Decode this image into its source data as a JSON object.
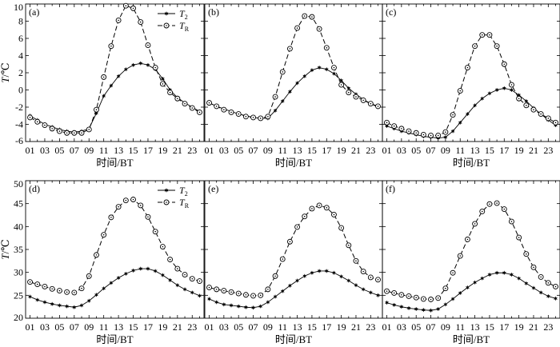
{
  "figure": {
    "ylabel_var": "T",
    "ylabel_unit": "/℃",
    "xlabel": "时间/BT",
    "x_tick_labels": [
      "01",
      "03",
      "05",
      "07",
      "09",
      "11",
      "13",
      "15",
      "17",
      "19",
      "21",
      "23"
    ]
  },
  "legend": {
    "t2": {
      "label": "T",
      "sub": "2",
      "color": "#000000",
      "style": "solid",
      "marker": "filled-star"
    },
    "tr": {
      "label": "T",
      "sub": "R",
      "color": "#000000",
      "style": "dashed",
      "marker": "open-circle"
    }
  },
  "chart_data": [
    {
      "type": "line",
      "panel_label": "(a)",
      "row": 0,
      "x": [
        1,
        2,
        3,
        4,
        5,
        6,
        7,
        8,
        9,
        10,
        11,
        12,
        13,
        14,
        15,
        16,
        17,
        18,
        19,
        20,
        21,
        22,
        23,
        24
      ],
      "ylim": [
        -6,
        10
      ],
      "yticks": [
        -6,
        -4,
        -2,
        0,
        2,
        4,
        6,
        8,
        10
      ],
      "series": [
        {
          "name": "T2",
          "values": [
            -3.0,
            -3.5,
            -4.0,
            -4.3,
            -4.6,
            -4.8,
            -4.9,
            -4.8,
            -4.5,
            -2.7,
            -0.7,
            0.5,
            1.6,
            2.4,
            2.9,
            3.1,
            2.9,
            2.4,
            1.3,
            0.0,
            -0.9,
            -1.5,
            -2.0,
            -2.5
          ]
        },
        {
          "name": "TR",
          "values": [
            -3.2,
            -3.7,
            -4.1,
            -4.5,
            -4.8,
            -5.0,
            -5.0,
            -5.0,
            -4.6,
            -2.3,
            1.5,
            5.1,
            8.1,
            9.8,
            9.5,
            7.9,
            5.2,
            2.6,
            0.7,
            -0.3,
            -1.0,
            -1.6,
            -2.1,
            -2.6
          ]
        }
      ]
    },
    {
      "type": "line",
      "panel_label": "(b)",
      "row": 0,
      "x": [
        1,
        2,
        3,
        4,
        5,
        6,
        7,
        8,
        9,
        10,
        11,
        12,
        13,
        14,
        15,
        16,
        17,
        18,
        19,
        20,
        21,
        22,
        23,
        24
      ],
      "ylim": [
        -6,
        10
      ],
      "yticks": [
        -6,
        -4,
        -2,
        0,
        2,
        4,
        6,
        8,
        10
      ],
      "series": [
        {
          "name": "T2",
          "values": [
            -1.5,
            -1.9,
            -2.2,
            -2.5,
            -2.8,
            -3.0,
            -3.2,
            -3.3,
            -3.3,
            -2.4,
            -1.3,
            -0.2,
            0.8,
            1.6,
            2.3,
            2.6,
            2.4,
            1.9,
            1.1,
            0.2,
            -0.5,
            -1.1,
            -1.6,
            -2.0
          ]
        },
        {
          "name": "TR",
          "values": [
            -1.5,
            -1.9,
            -2.3,
            -2.6,
            -2.8,
            -3.1,
            -3.2,
            -3.3,
            -3.1,
            -0.8,
            2.1,
            4.8,
            7.2,
            8.6,
            8.5,
            7.1,
            4.9,
            2.6,
            0.6,
            -0.3,
            -0.8,
            -1.2,
            -1.6,
            -1.9
          ]
        }
      ]
    },
    {
      "type": "line",
      "panel_label": "(c)",
      "row": 0,
      "x": [
        1,
        2,
        3,
        4,
        5,
        6,
        7,
        8,
        9,
        10,
        11,
        12,
        13,
        14,
        15,
        16,
        17,
        18,
        19,
        20,
        21,
        22,
        23,
        24
      ],
      "ylim": [
        -6,
        10
      ],
      "yticks": [
        -6,
        -4,
        -2,
        0,
        2,
        4,
        6,
        8,
        10
      ],
      "series": [
        {
          "name": "T2",
          "values": [
            -4.2,
            -4.5,
            -4.8,
            -5.0,
            -5.2,
            -5.4,
            -5.5,
            -5.6,
            -5.5,
            -4.8,
            -3.8,
            -2.8,
            -1.8,
            -1.0,
            -0.4,
            0.0,
            0.2,
            0.0,
            -0.6,
            -1.3,
            -2.1,
            -2.8,
            -3.5,
            -4.1
          ]
        },
        {
          "name": "TR",
          "values": [
            -3.8,
            -4.2,
            -4.5,
            -4.8,
            -5.0,
            -5.2,
            -5.3,
            -5.3,
            -4.9,
            -2.9,
            -0.1,
            2.6,
            5.1,
            6.4,
            6.4,
            5.1,
            3.0,
            0.6,
            -1.0,
            -1.8,
            -2.3,
            -2.8,
            -3.3,
            -3.8
          ]
        }
      ]
    },
    {
      "type": "line",
      "panel_label": "(d)",
      "row": 1,
      "x": [
        1,
        2,
        3,
        4,
        5,
        6,
        7,
        8,
        9,
        10,
        11,
        12,
        13,
        14,
        15,
        16,
        17,
        18,
        19,
        20,
        21,
        22,
        23,
        24
      ],
      "ylim": [
        20,
        50
      ],
      "yticks": [
        20,
        25,
        30,
        35,
        40,
        45,
        50
      ],
      "series": [
        {
          "name": "T2",
          "values": [
            24.7,
            24.0,
            23.5,
            23.1,
            22.8,
            22.6,
            22.4,
            22.8,
            23.8,
            25.1,
            26.5,
            27.7,
            28.8,
            29.7,
            30.4,
            30.8,
            30.8,
            30.3,
            29.4,
            28.3,
            27.2,
            26.3,
            25.6,
            24.9
          ]
        },
        {
          "name": "TR",
          "values": [
            27.9,
            27.4,
            26.9,
            26.4,
            26.0,
            25.7,
            25.6,
            26.5,
            29.2,
            33.8,
            38.2,
            42.0,
            44.3,
            45.7,
            45.9,
            44.6,
            42.1,
            38.9,
            35.6,
            32.8,
            30.8,
            29.5,
            28.6,
            28.1
          ]
        }
      ]
    },
    {
      "type": "line",
      "panel_label": "(e)",
      "row": 1,
      "x": [
        1,
        2,
        3,
        4,
        5,
        6,
        7,
        8,
        9,
        10,
        11,
        12,
        13,
        14,
        15,
        16,
        17,
        18,
        19,
        20,
        21,
        22,
        23,
        24
      ],
      "ylim": [
        20,
        50
      ],
      "yticks": [
        20,
        25,
        30,
        35,
        40,
        45,
        50
      ],
      "series": [
        {
          "name": "T2",
          "values": [
            24.2,
            23.5,
            23.0,
            22.8,
            22.6,
            22.4,
            22.3,
            22.6,
            23.5,
            24.7,
            25.9,
            27.1,
            28.2,
            29.2,
            29.9,
            30.3,
            30.3,
            29.9,
            29.1,
            28.2,
            27.2,
            26.3,
            25.6,
            25.0
          ]
        },
        {
          "name": "TR",
          "values": [
            26.7,
            26.3,
            26.0,
            25.7,
            25.4,
            25.1,
            24.9,
            25.0,
            26.3,
            29.2,
            32.9,
            36.7,
            39.9,
            42.2,
            43.9,
            44.6,
            44.1,
            42.6,
            39.7,
            35.9,
            32.5,
            30.2,
            28.9,
            28.4
          ]
        }
      ]
    },
    {
      "type": "line",
      "panel_label": "(f)",
      "row": 1,
      "x": [
        1,
        2,
        3,
        4,
        5,
        6,
        7,
        8,
        9,
        10,
        11,
        12,
        13,
        14,
        15,
        16,
        17,
        18,
        19,
        20,
        21,
        22,
        23,
        24
      ],
      "ylim": [
        20,
        50
      ],
      "yticks": [
        20,
        25,
        30,
        35,
        40,
        45,
        50
      ],
      "series": [
        {
          "name": "T2",
          "values": [
            23.4,
            22.9,
            22.5,
            22.2,
            22.0,
            21.8,
            21.7,
            22.0,
            23.0,
            24.2,
            25.5,
            26.7,
            27.8,
            28.7,
            29.5,
            29.9,
            29.9,
            29.5,
            28.7,
            27.6,
            26.6,
            25.6,
            24.8,
            24.3
          ]
        },
        {
          "name": "TR",
          "values": [
            25.9,
            25.5,
            25.1,
            24.8,
            24.5,
            24.2,
            24.1,
            24.4,
            26.5,
            29.9,
            33.6,
            37.2,
            40.6,
            43.3,
            44.9,
            45.1,
            43.8,
            41.1,
            37.6,
            34.0,
            31.1,
            29.0,
            27.7,
            26.9
          ]
        }
      ]
    }
  ]
}
